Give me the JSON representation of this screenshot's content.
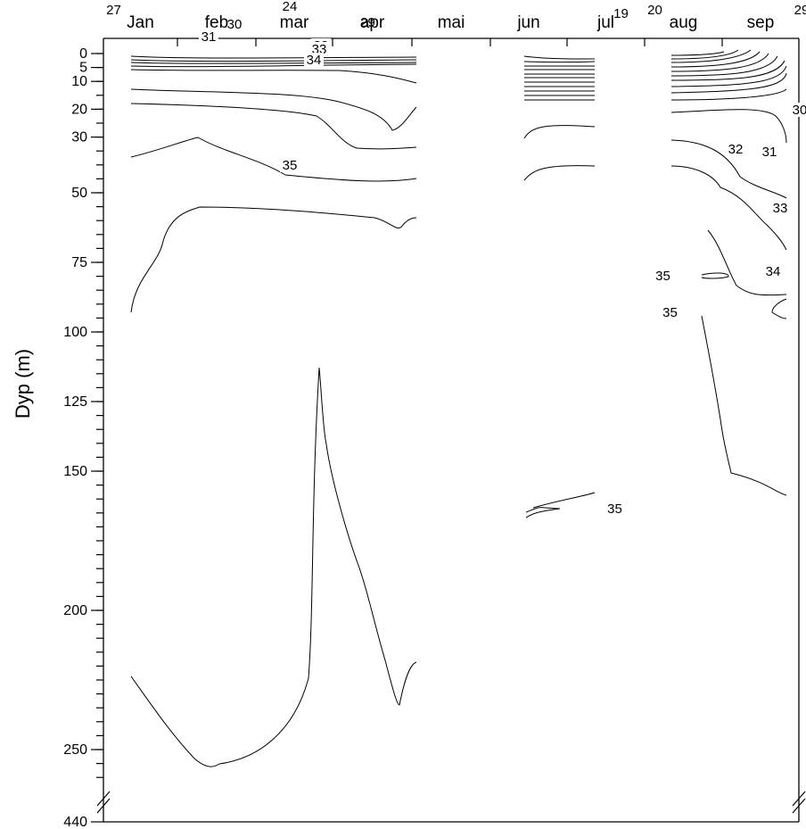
{
  "chart_data": {
    "type": "contour",
    "title": "",
    "xlabel": "",
    "ylabel": "Dyp (m)",
    "x_categories": [
      "Jan",
      "feb",
      "mar",
      "apr",
      "mai",
      "jun",
      "jul",
      "aug",
      "sep"
    ],
    "y_ticks": [
      "0",
      "5",
      "10",
      "20",
      "30",
      "50",
      "75",
      "100",
      "125",
      "150",
      "200",
      "250",
      "440"
    ],
    "y_axis_break": "between 260 and 440 m",
    "data_gaps": [
      "mai",
      "jun (early)",
      "jul (late)"
    ],
    "contour_levels": [
      19,
      20,
      24,
      27,
      29,
      30,
      31,
      32,
      33,
      34,
      35
    ],
    "contour_labels": [
      {
        "text": "27",
        "month": "Jan",
        "depth_m": 0
      },
      {
        "text": "24",
        "month": "mar",
        "depth_m": 0
      },
      {
        "text": "30",
        "month": "feb",
        "depth_m": 10
      },
      {
        "text": "29",
        "month": "apr",
        "depth_m": 9
      },
      {
        "text": "31",
        "month": "feb",
        "depth_m": 18
      },
      {
        "text": "32",
        "month": "mar",
        "depth_m": 25
      },
      {
        "text": "33",
        "month": "mar",
        "depth_m": 43
      },
      {
        "text": "34",
        "month": "mar",
        "depth_m": 57
      },
      {
        "text": "35",
        "month": "mar",
        "depth_m": 173
      },
      {
        "text": "19",
        "month": "jul",
        "depth_m": 0
      },
      {
        "text": "35",
        "month": "jul",
        "depth_m": 155
      },
      {
        "text": "20",
        "month": "aug",
        "depth_m": 0
      },
      {
        "text": "29",
        "month": "sep",
        "depth_m": 0
      },
      {
        "text": "30",
        "month": "sep",
        "depth_m": 20
      },
      {
        "text": "32",
        "month": "sep",
        "depth_m": 36
      },
      {
        "text": "31",
        "month": "sep",
        "depth_m": 38
      },
      {
        "text": "33",
        "month": "sep",
        "depth_m": 53
      },
      {
        "text": "35",
        "month": "aug",
        "depth_m": 72
      },
      {
        "text": "34",
        "month": "sep",
        "depth_m": 80
      },
      {
        "text": "35",
        "month": "aug",
        "depth_m": 94
      }
    ],
    "grid": false,
    "legend": "none"
  }
}
